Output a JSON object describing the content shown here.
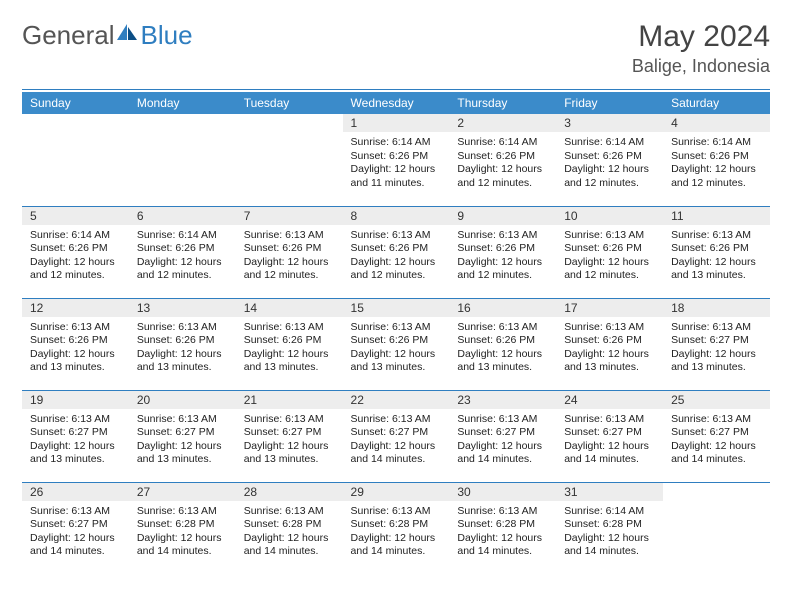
{
  "logo": {
    "general": "General",
    "blue": "Blue"
  },
  "title": "May 2024",
  "location": "Balige, Indonesia",
  "colors": {
    "header_bg": "#3b8bca",
    "header_text": "#ffffff",
    "rule": "#2f7ec0",
    "daynum_bg": "#ededed",
    "body_text": "#222222",
    "logo_gray": "#555555",
    "logo_blue": "#2f7ec0"
  },
  "fonts": {
    "title_size": 30,
    "location_size": 18,
    "dayhead_size": 12,
    "body_size": 10.5
  },
  "day_headers": [
    "Sunday",
    "Monday",
    "Tuesday",
    "Wednesday",
    "Thursday",
    "Friday",
    "Saturday"
  ],
  "weeks": [
    [
      null,
      null,
      null,
      {
        "n": "1",
        "sr": "Sunrise: 6:14 AM",
        "ss": "Sunset: 6:26 PM",
        "dl1": "Daylight: 12 hours",
        "dl2": "and 11 minutes."
      },
      {
        "n": "2",
        "sr": "Sunrise: 6:14 AM",
        "ss": "Sunset: 6:26 PM",
        "dl1": "Daylight: 12 hours",
        "dl2": "and 12 minutes."
      },
      {
        "n": "3",
        "sr": "Sunrise: 6:14 AM",
        "ss": "Sunset: 6:26 PM",
        "dl1": "Daylight: 12 hours",
        "dl2": "and 12 minutes."
      },
      {
        "n": "4",
        "sr": "Sunrise: 6:14 AM",
        "ss": "Sunset: 6:26 PM",
        "dl1": "Daylight: 12 hours",
        "dl2": "and 12 minutes."
      }
    ],
    [
      {
        "n": "5",
        "sr": "Sunrise: 6:14 AM",
        "ss": "Sunset: 6:26 PM",
        "dl1": "Daylight: 12 hours",
        "dl2": "and 12 minutes."
      },
      {
        "n": "6",
        "sr": "Sunrise: 6:14 AM",
        "ss": "Sunset: 6:26 PM",
        "dl1": "Daylight: 12 hours",
        "dl2": "and 12 minutes."
      },
      {
        "n": "7",
        "sr": "Sunrise: 6:13 AM",
        "ss": "Sunset: 6:26 PM",
        "dl1": "Daylight: 12 hours",
        "dl2": "and 12 minutes."
      },
      {
        "n": "8",
        "sr": "Sunrise: 6:13 AM",
        "ss": "Sunset: 6:26 PM",
        "dl1": "Daylight: 12 hours",
        "dl2": "and 12 minutes."
      },
      {
        "n": "9",
        "sr": "Sunrise: 6:13 AM",
        "ss": "Sunset: 6:26 PM",
        "dl1": "Daylight: 12 hours",
        "dl2": "and 12 minutes."
      },
      {
        "n": "10",
        "sr": "Sunrise: 6:13 AM",
        "ss": "Sunset: 6:26 PM",
        "dl1": "Daylight: 12 hours",
        "dl2": "and 12 minutes."
      },
      {
        "n": "11",
        "sr": "Sunrise: 6:13 AM",
        "ss": "Sunset: 6:26 PM",
        "dl1": "Daylight: 12 hours",
        "dl2": "and 13 minutes."
      }
    ],
    [
      {
        "n": "12",
        "sr": "Sunrise: 6:13 AM",
        "ss": "Sunset: 6:26 PM",
        "dl1": "Daylight: 12 hours",
        "dl2": "and 13 minutes."
      },
      {
        "n": "13",
        "sr": "Sunrise: 6:13 AM",
        "ss": "Sunset: 6:26 PM",
        "dl1": "Daylight: 12 hours",
        "dl2": "and 13 minutes."
      },
      {
        "n": "14",
        "sr": "Sunrise: 6:13 AM",
        "ss": "Sunset: 6:26 PM",
        "dl1": "Daylight: 12 hours",
        "dl2": "and 13 minutes."
      },
      {
        "n": "15",
        "sr": "Sunrise: 6:13 AM",
        "ss": "Sunset: 6:26 PM",
        "dl1": "Daylight: 12 hours",
        "dl2": "and 13 minutes."
      },
      {
        "n": "16",
        "sr": "Sunrise: 6:13 AM",
        "ss": "Sunset: 6:26 PM",
        "dl1": "Daylight: 12 hours",
        "dl2": "and 13 minutes."
      },
      {
        "n": "17",
        "sr": "Sunrise: 6:13 AM",
        "ss": "Sunset: 6:26 PM",
        "dl1": "Daylight: 12 hours",
        "dl2": "and 13 minutes."
      },
      {
        "n": "18",
        "sr": "Sunrise: 6:13 AM",
        "ss": "Sunset: 6:27 PM",
        "dl1": "Daylight: 12 hours",
        "dl2": "and 13 minutes."
      }
    ],
    [
      {
        "n": "19",
        "sr": "Sunrise: 6:13 AM",
        "ss": "Sunset: 6:27 PM",
        "dl1": "Daylight: 12 hours",
        "dl2": "and 13 minutes."
      },
      {
        "n": "20",
        "sr": "Sunrise: 6:13 AM",
        "ss": "Sunset: 6:27 PM",
        "dl1": "Daylight: 12 hours",
        "dl2": "and 13 minutes."
      },
      {
        "n": "21",
        "sr": "Sunrise: 6:13 AM",
        "ss": "Sunset: 6:27 PM",
        "dl1": "Daylight: 12 hours",
        "dl2": "and 13 minutes."
      },
      {
        "n": "22",
        "sr": "Sunrise: 6:13 AM",
        "ss": "Sunset: 6:27 PM",
        "dl1": "Daylight: 12 hours",
        "dl2": "and 14 minutes."
      },
      {
        "n": "23",
        "sr": "Sunrise: 6:13 AM",
        "ss": "Sunset: 6:27 PM",
        "dl1": "Daylight: 12 hours",
        "dl2": "and 14 minutes."
      },
      {
        "n": "24",
        "sr": "Sunrise: 6:13 AM",
        "ss": "Sunset: 6:27 PM",
        "dl1": "Daylight: 12 hours",
        "dl2": "and 14 minutes."
      },
      {
        "n": "25",
        "sr": "Sunrise: 6:13 AM",
        "ss": "Sunset: 6:27 PM",
        "dl1": "Daylight: 12 hours",
        "dl2": "and 14 minutes."
      }
    ],
    [
      {
        "n": "26",
        "sr": "Sunrise: 6:13 AM",
        "ss": "Sunset: 6:27 PM",
        "dl1": "Daylight: 12 hours",
        "dl2": "and 14 minutes."
      },
      {
        "n": "27",
        "sr": "Sunrise: 6:13 AM",
        "ss": "Sunset: 6:28 PM",
        "dl1": "Daylight: 12 hours",
        "dl2": "and 14 minutes."
      },
      {
        "n": "28",
        "sr": "Sunrise: 6:13 AM",
        "ss": "Sunset: 6:28 PM",
        "dl1": "Daylight: 12 hours",
        "dl2": "and 14 minutes."
      },
      {
        "n": "29",
        "sr": "Sunrise: 6:13 AM",
        "ss": "Sunset: 6:28 PM",
        "dl1": "Daylight: 12 hours",
        "dl2": "and 14 minutes."
      },
      {
        "n": "30",
        "sr": "Sunrise: 6:13 AM",
        "ss": "Sunset: 6:28 PM",
        "dl1": "Daylight: 12 hours",
        "dl2": "and 14 minutes."
      },
      {
        "n": "31",
        "sr": "Sunrise: 6:14 AM",
        "ss": "Sunset: 6:28 PM",
        "dl1": "Daylight: 12 hours",
        "dl2": "and 14 minutes."
      },
      null
    ]
  ]
}
